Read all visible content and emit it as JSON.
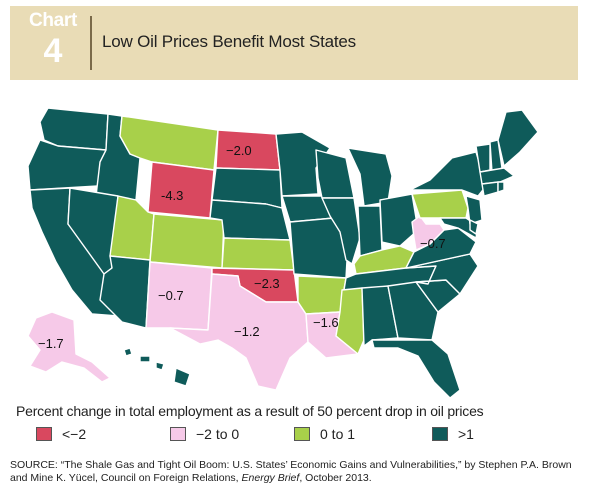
{
  "header": {
    "chart_word": "Chart",
    "chart_number": "4",
    "title": "Low Oil Prices Benefit Most States"
  },
  "colors": {
    "header_bg": "#e9dcb6",
    "red": "#d9485f",
    "pink": "#f6c9e8",
    "green": "#a8d04a",
    "teal": "#0f5b5a"
  },
  "map": {
    "labels": {
      "ND": "−2.0",
      "WY": "-4.3",
      "NM": "−0.7",
      "OK": "−2.3",
      "TX": "−1.2",
      "LA": "−1.6",
      "AK": "−1.7",
      "WV": "−0.7"
    }
  },
  "legend": {
    "title": "Percent change in total employment as a result of 50 percent drop in oil  prices",
    "items": [
      {
        "label": "<−2",
        "color": "#d9485f"
      },
      {
        "label": "−2 to 0",
        "color": "#f6c9e8"
      },
      {
        "label": "0 to 1",
        "color": "#a8d04a"
      },
      {
        "label": ">1",
        "color": "#0f5b5a"
      }
    ]
  },
  "source": {
    "line1": "SOURCE: “The Shale Gas and Tight Oil Boom: U.S. States’ Economic Gains and Vulnerabilities,” by Stephen P.A. Brown",
    "line2_pre": "and Mine K. Yücel, Council on Foreign Relations, ",
    "line2_italic": "Energy Brief",
    "line2_post": ", October 2013."
  }
}
